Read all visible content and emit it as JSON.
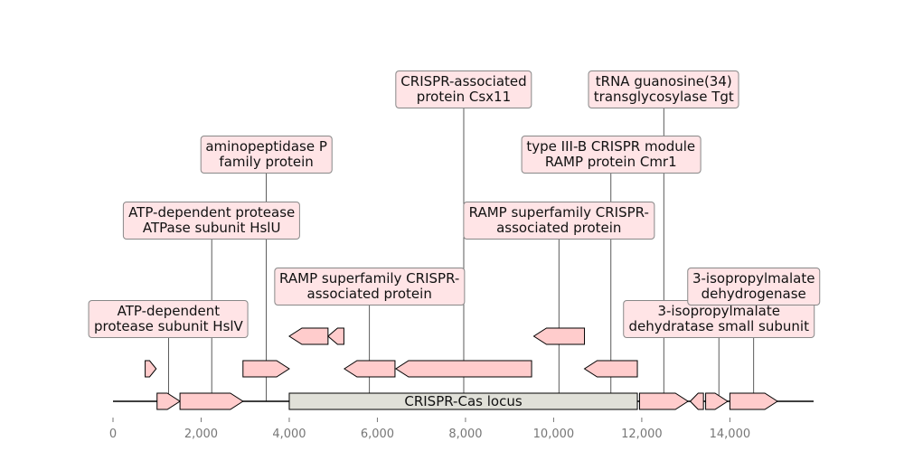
{
  "genome_map": {
    "region": {
      "label": "CRISPR-Cas locus",
      "start": 4000,
      "end": 11900,
      "fill": "#e0e0d8"
    },
    "features": [
      {
        "label": "ATP-dependent protease subunit HslV",
        "start": 1000,
        "end": 1520,
        "strand": 1,
        "level": 0
      },
      {
        "label": "ATP-dependent protease ATPase subunit HslU",
        "start": 1520,
        "end": 2950,
        "strand": 1,
        "level": 0
      },
      {
        "label": "3-isopropylmalate dehydratase small subunit",
        "start": 11950,
        "end": 13050,
        "strand": 1,
        "level": 0
      },
      {
        "label": "",
        "start": 13100,
        "end": 13400,
        "strand": -1,
        "level": 0
      },
      {
        "label": "",
        "start": 13450,
        "end": 13950,
        "strand": 1,
        "level": 0
      },
      {
        "label": "3-isopropylmalate dehydrogenase",
        "start": 14000,
        "end": 15080,
        "strand": 1,
        "level": 0
      },
      {
        "label": "",
        "start": 730,
        "end": 980,
        "strand": 1,
        "level": 1
      },
      {
        "label": "aminopeptidase P family protein",
        "start": 2950,
        "end": 4000,
        "strand": 1,
        "level": 1
      },
      {
        "label": "RAMP superfamily CRISPR-associated protein",
        "start": 5250,
        "end": 6400,
        "strand": -1,
        "level": 1
      },
      {
        "label": "CRISPR-associated protein Csx11",
        "start": 6420,
        "end": 9500,
        "strand": -1,
        "level": 1
      },
      {
        "label": "type III-B CRISPR module RAMP protein Cmr1",
        "start": 10700,
        "end": 11900,
        "strand": -1,
        "level": 1
      },
      {
        "label": "",
        "start": 4000,
        "end": 4880,
        "strand": -1,
        "level": 2
      },
      {
        "label": "",
        "start": 4880,
        "end": 5240,
        "strand": -1,
        "level": 2
      },
      {
        "label": "RAMP superfamily CRISPR-associated protein",
        "start": 9550,
        "end": 10700,
        "strand": -1,
        "level": 2
      },
      {
        "label": "tRNA guanosine(34) transglycosylase Tgt",
        "start": 12000,
        "end": 12000,
        "strand": 0,
        "level": -1
      }
    ],
    "labels": [
      {
        "text": "ATP-dependent\nprotease subunit HslV",
        "pos": 1260,
        "row": 0
      },
      {
        "text": "ATP-dependent protease\nATPase subunit HslU",
        "pos": 2240,
        "row": 2
      },
      {
        "text": "aminopeptidase P\nfamily protein",
        "pos": 3480,
        "row": 3
      },
      {
        "text": "RAMP superfamily CRISPR-\nassociated protein",
        "pos": 5820,
        "row": 1
      },
      {
        "text": "CRISPR-associated\nprotein Csx11",
        "pos": 7960,
        "row": 4
      },
      {
        "text": "RAMP superfamily CRISPR-\nassociated protein",
        "pos": 10120,
        "row": 2
      },
      {
        "text": "type III-B CRISPR module\nRAMP protein Cmr1",
        "pos": 11300,
        "row": 3
      },
      {
        "text": "tRNA guanosine(34)\ntransglycosylase Tgt",
        "pos": 12500,
        "row": 4
      },
      {
        "text": "3-isopropylmalate\ndehydratase small subunit",
        "pos": 13750,
        "row": 0
      },
      {
        "text": "3-isopropylmalate\ndehydrogenase",
        "pos": 14540,
        "row": 1
      }
    ],
    "axis": {
      "min": 0,
      "max": 15900,
      "ticks": [
        0,
        2000,
        4000,
        6000,
        8000,
        10000,
        12000,
        14000
      ],
      "tick_labels": [
        "0",
        "2,000",
        "4,000",
        "6,000",
        "8,000",
        "10,000",
        "12,000",
        "14,000"
      ]
    },
    "colors": {
      "feature_fill": "#ffcccc",
      "label_fill": "#ffe4e6",
      "line": "#000000",
      "axis_text": "#777777"
    }
  }
}
